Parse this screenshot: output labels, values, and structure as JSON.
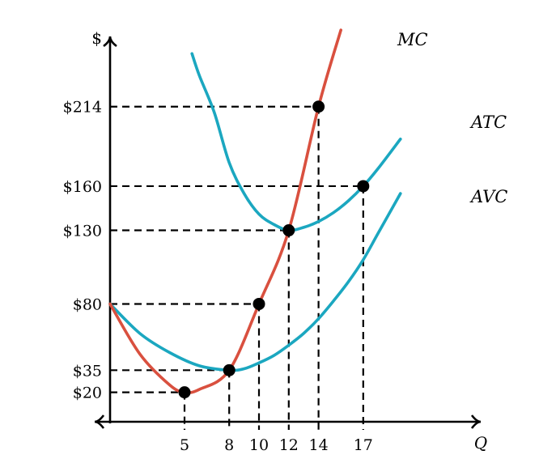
{
  "chart_data": {
    "type": "line",
    "y_unit_label": "$",
    "x_axis_label": "Q",
    "x_ticks": [
      5,
      8,
      10,
      12,
      14,
      17
    ],
    "y_ticks": [
      {
        "value": 20,
        "label": "$20"
      },
      {
        "value": 35,
        "label": "$35"
      },
      {
        "value": 80,
        "label": "$80"
      },
      {
        "value": 130,
        "label": "$130"
      },
      {
        "value": 160,
        "label": "$160"
      },
      {
        "value": 214,
        "label": "$214"
      }
    ],
    "xlim": [
      0,
      24
    ],
    "ylim": [
      0,
      250
    ],
    "colors": {
      "mc": "#d9503f",
      "atc": "#1ba7c0",
      "avc": "#1ba7c0",
      "points": "#000000",
      "axes": "#000000"
    },
    "series": [
      {
        "key": "mc",
        "name": "MC",
        "x": [
          0,
          2,
          4,
          5,
          6,
          8,
          10,
          12,
          14,
          15.5
        ],
        "y": [
          80,
          46,
          25,
          20,
          22,
          35,
          80,
          130,
          214,
          266
        ]
      },
      {
        "key": "atc",
        "name": "ATC",
        "x": [
          5.5,
          6,
          7,
          8,
          9,
          10,
          11,
          12,
          13,
          14,
          15,
          16,
          17,
          18,
          19.5
        ],
        "y": [
          250,
          235,
          210,
          176,
          155,
          141,
          134,
          130,
          132,
          136,
          142,
          150,
          160,
          172,
          192
        ]
      },
      {
        "key": "avc",
        "name": "AVC",
        "x": [
          0,
          2,
          4,
          6,
          8,
          9,
          10,
          11,
          12,
          13,
          14,
          15,
          16,
          17,
          18,
          19.5
        ],
        "y": [
          80,
          60,
          47,
          38,
          35,
          36,
          40,
          45,
          52,
          60,
          70,
          82,
          95,
          110,
          128,
          155
        ]
      }
    ],
    "points": [
      {
        "x": 5,
        "y": 20
      },
      {
        "x": 8,
        "y": 35
      },
      {
        "x": 10,
        "y": 80
      },
      {
        "x": 12,
        "y": 130
      },
      {
        "x": 14,
        "y": 214
      },
      {
        "x": 17,
        "y": 160
      }
    ]
  }
}
